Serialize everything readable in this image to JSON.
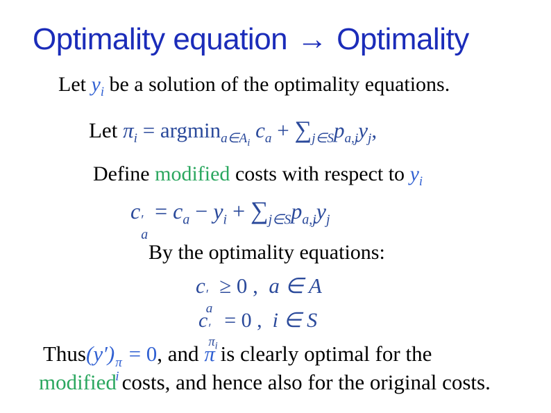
{
  "colors": {
    "title_blue": "#1b2cb9",
    "math_navy": "#2b4a9b",
    "math_bright": "#3060d2",
    "green": "#2ba75f",
    "text": "#000000",
    "background": "#ffffff"
  },
  "title": {
    "left": "Optimality equation ",
    "arrow": "→",
    "right": " Optimality"
  },
  "statements": {
    "let_y": {
      "lead": "Let ",
      "var": "y",
      "var_sub": "i",
      "rest": " be a solution of the optimality equations."
    },
    "let_pi": {
      "lead": "Let ",
      "pi": "π",
      "pi_sub": "i",
      "equals": " = ",
      "argmin": "argmin",
      "argmin_sub": "a∈A",
      "argmin_sub_sub": "i",
      "c": " c",
      "c_sub": "a",
      "plus": " + ",
      "sum": "∑",
      "sum_sub": "j∈S",
      "p": "p",
      "p_sub": "a,j",
      "y": "y",
      "y_sub": "j",
      "trail": ","
    },
    "define": {
      "lead": "Define ",
      "modified": "modified",
      "mid": " costs with respect to ",
      "var": "y",
      "var_sub": "i"
    },
    "mod_cost": {
      "c1": "c",
      "c1_prime": "′",
      "c1_sub": "a",
      "equals": " = ",
      "c2": " c",
      "c2_sub": "a",
      "minus": " − ",
      "y1": "y",
      "y1_sub": "i",
      "plus": " + ",
      "sum": "∑",
      "sum_sub": "j∈S",
      "p": "p",
      "p_sub": "a,j",
      "y2": "y",
      "y2_sub": "j"
    },
    "by_opt": "By the optimality equations:",
    "ineq": {
      "c": "c",
      "prime": "′",
      "sub": "a",
      "rel": " ≥ 0",
      "comma": " ,  ",
      "cond": "a ∈ A"
    },
    "eq_pi": {
      "c": "c",
      "prime": "′",
      "sub_pi": "π",
      "sub_sub": "i",
      "rel": " = 0",
      "comma": " ,  ",
      "cond": "i ∈ S"
    },
    "thus": {
      "lead": "Thus",
      "paren": "(y′)",
      "sup": "π",
      "sup_sub": "i",
      "eq": " = 0",
      "mid": ", and ",
      "pi": "π",
      "rest": " is clearly optimal for the"
    },
    "final": {
      "modified": "modified",
      "rest": " costs, and hence also for the original costs."
    }
  }
}
